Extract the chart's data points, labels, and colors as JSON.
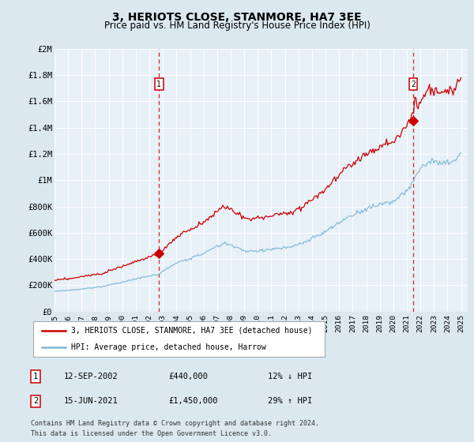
{
  "title": "3, HERIOTS CLOSE, STANMORE, HA7 3EE",
  "subtitle": "Price paid vs. HM Land Registry's House Price Index (HPI)",
  "ylim": [
    0,
    2000000
  ],
  "xlim_start": 1995.0,
  "xlim_end": 2025.5,
  "yticks": [
    0,
    200000,
    400000,
    600000,
    800000,
    1000000,
    1200000,
    1400000,
    1600000,
    1800000,
    2000000
  ],
  "ytick_labels": [
    "£0",
    "£200K",
    "£400K",
    "£600K",
    "£800K",
    "£1M",
    "£1.2M",
    "£1.4M",
    "£1.6M",
    "£1.8M",
    "£2M"
  ],
  "xtick_years": [
    1995,
    1996,
    1997,
    1998,
    1999,
    2000,
    2001,
    2002,
    2003,
    2004,
    2005,
    2006,
    2007,
    2008,
    2009,
    2010,
    2011,
    2012,
    2013,
    2014,
    2015,
    2016,
    2017,
    2018,
    2019,
    2020,
    2021,
    2022,
    2023,
    2024,
    2025
  ],
  "hpi_color": "#7ab8d4",
  "price_color": "#cc0000",
  "transaction1_year": 2002.71,
  "transaction1_price": 440000,
  "transaction2_year": 2021.46,
  "transaction2_price": 1450000,
  "legend_label1": "3, HERIOTS CLOSE, STANMORE, HA7 3EE (detached house)",
  "legend_label2": "HPI: Average price, detached house, Harrow",
  "table_entries": [
    {
      "num": "1",
      "date": "12-SEP-2002",
      "price": "£440,000",
      "pct": "12% ↓ HPI"
    },
    {
      "num": "2",
      "date": "15-JUN-2021",
      "price": "£1,450,000",
      "pct": "29% ↑ HPI"
    }
  ],
  "footnote1": "Contains HM Land Registry data © Crown copyright and database right 2024.",
  "footnote2": "This data is licensed under the Open Government Licence v3.0.",
  "bg_color": "#dce8f0",
  "plot_bg_color": "#e8f0f8",
  "grid_color": "#ffffff",
  "title_fontsize": 10,
  "subtitle_fontsize": 8.5
}
